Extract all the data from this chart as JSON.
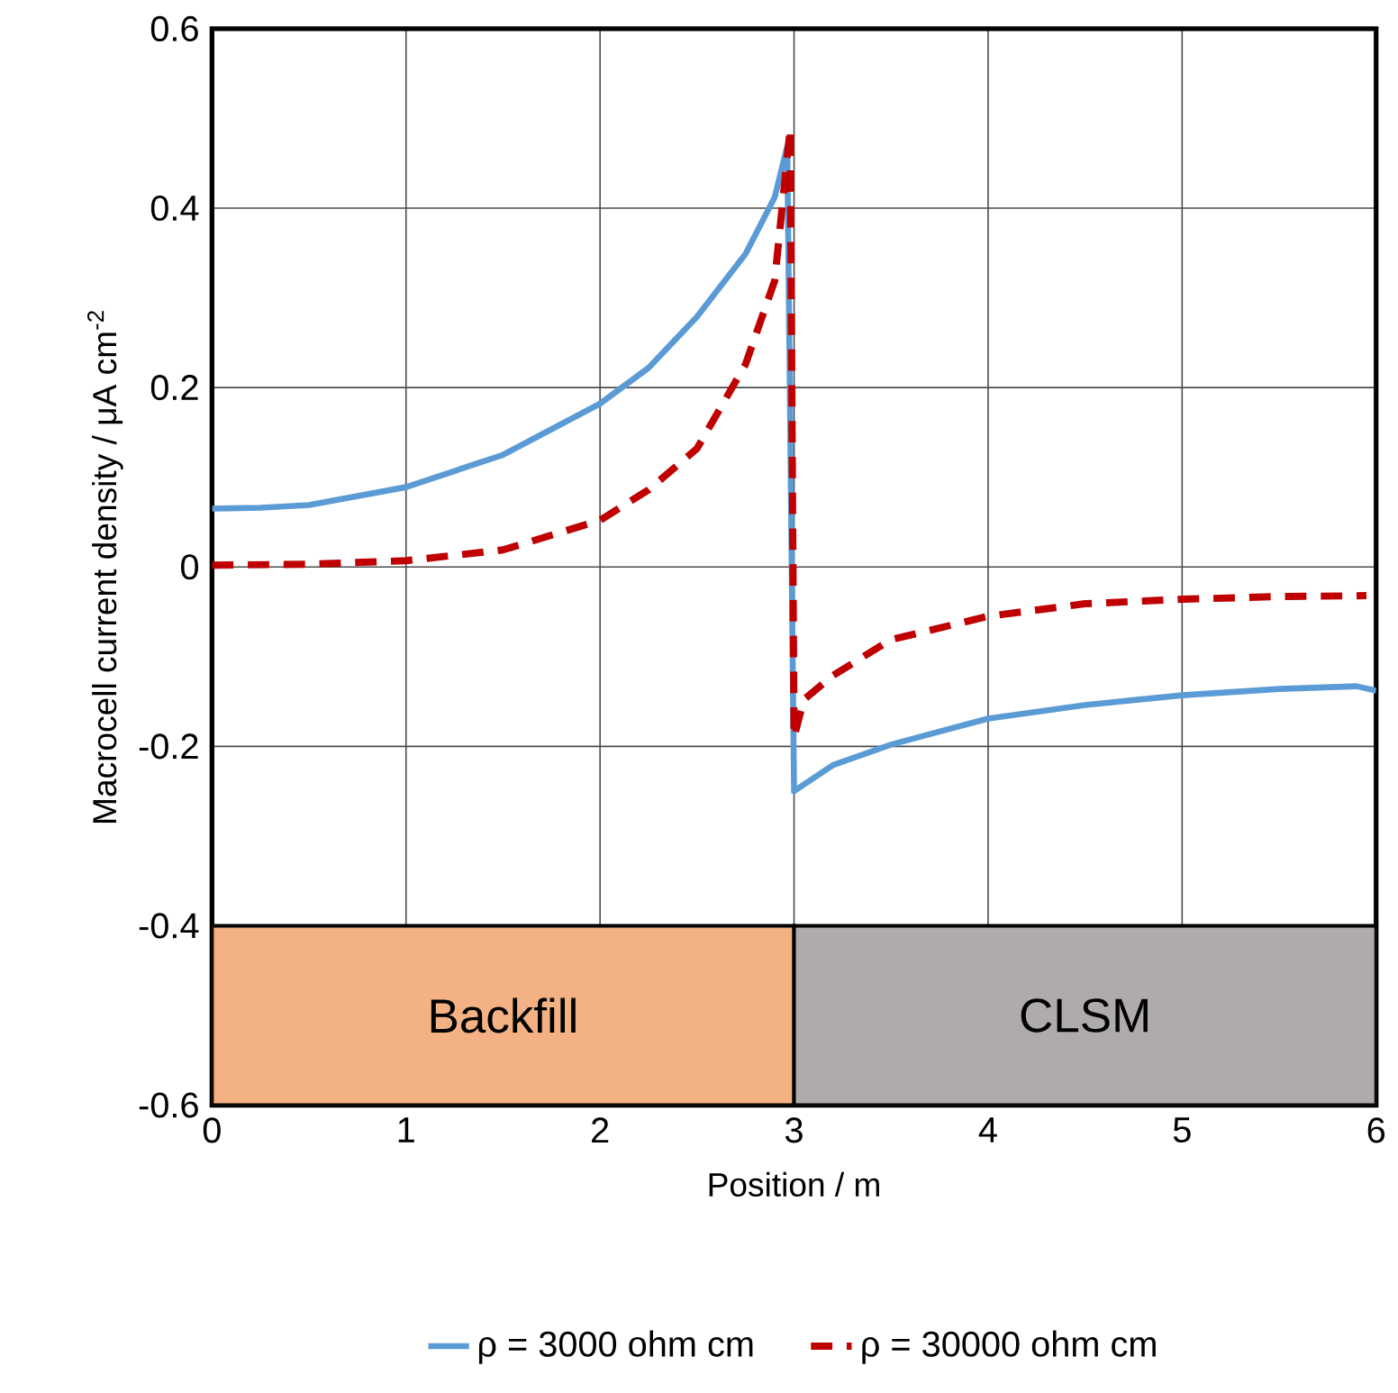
{
  "chart_data": {
    "type": "line",
    "xlabel": "Position  / m",
    "ylabel": "Macrocell current density / μA cm$^{-2}$",
    "xlim": [
      0,
      6
    ],
    "ylim": [
      -0.6,
      0.6
    ],
    "xticks": [
      0,
      1,
      2,
      3,
      4,
      5,
      6
    ],
    "yticks": [
      -0.6,
      -0.4,
      -0.2,
      0,
      0.2,
      0.4,
      0.6
    ],
    "grid": true,
    "legend": "bottom",
    "bands": [
      {
        "axis": "x",
        "from": 0,
        "to": 3,
        "label": "Backfill",
        "color": "#f4b183"
      },
      {
        "axis": "x",
        "from": 3,
        "to": 6,
        "label": "CLSM",
        "color": "#afabab"
      }
    ],
    "series": [
      {
        "name": "ρ = 3000 ohm cm",
        "color": "#5b9bd5",
        "line_style": "solid",
        "x": [
          0,
          0.25,
          0.5,
          1,
          1.5,
          2,
          2.25,
          2.5,
          2.75,
          2.9,
          2.965,
          3,
          3.2,
          3.5,
          4,
          4.5,
          5,
          5.5,
          5.9,
          6
        ],
        "values": [
          0.065,
          0.066,
          0.069,
          0.089,
          0.125,
          0.182,
          0.222,
          0.279,
          0.349,
          0.412,
          0.469,
          -0.25,
          -0.221,
          -0.198,
          -0.169,
          -0.154,
          -0.143,
          -0.136,
          -0.133,
          -0.138
        ]
      },
      {
        "name": "ρ = 30000 ohm cm",
        "color": "#c00000",
        "line_style": "dashed",
        "x": [
          0,
          0.5,
          1,
          1.5,
          2,
          2.25,
          2.5,
          2.75,
          2.9,
          2.98,
          3,
          3.05,
          3.2,
          3.5,
          4,
          4.5,
          5,
          5.5,
          5.95
        ],
        "values": [
          0.002,
          0.003,
          0.007,
          0.019,
          0.052,
          0.086,
          0.132,
          0.226,
          0.319,
          0.489,
          -0.19,
          -0.148,
          -0.121,
          -0.081,
          -0.055,
          -0.041,
          -0.036,
          -0.033,
          -0.032
        ]
      }
    ]
  }
}
